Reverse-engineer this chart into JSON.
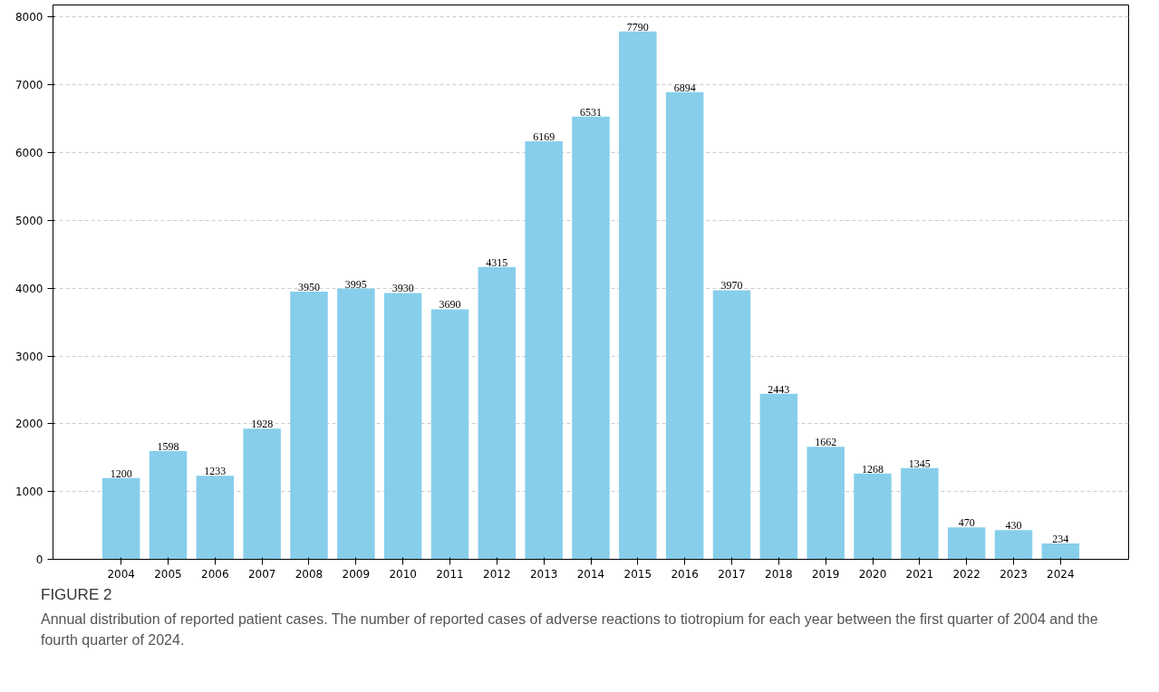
{
  "chart_data": {
    "type": "bar",
    "title": "FIGURE 2",
    "subtitle": "Annual distribution of reported patient cases. The number of reported cases of adverse reactions to tiotropium for each year between the first quarter of 2004 and the fourth quarter of 2024.",
    "categories": [
      "2004",
      "2005",
      "2006",
      "2007",
      "2008",
      "2009",
      "2010",
      "2011",
      "2012",
      "2013",
      "2014",
      "2015",
      "2016",
      "2017",
      "2018",
      "2019",
      "2020",
      "2021",
      "2022",
      "2023",
      "2024"
    ],
    "values": [
      1200,
      1598,
      1233,
      1928,
      3950,
      3995,
      3930,
      3690,
      4315,
      6169,
      6531,
      7790,
      6894,
      3970,
      2443,
      1662,
      1268,
      1345,
      470,
      430,
      234
    ],
    "color": "#87ceeb",
    "ylim": [
      0,
      8180
    ],
    "yticks": [
      0,
      1000,
      2000,
      3000,
      4000,
      5000,
      6000,
      7000,
      8000
    ],
    "grid": "y",
    "data_labels": true
  }
}
